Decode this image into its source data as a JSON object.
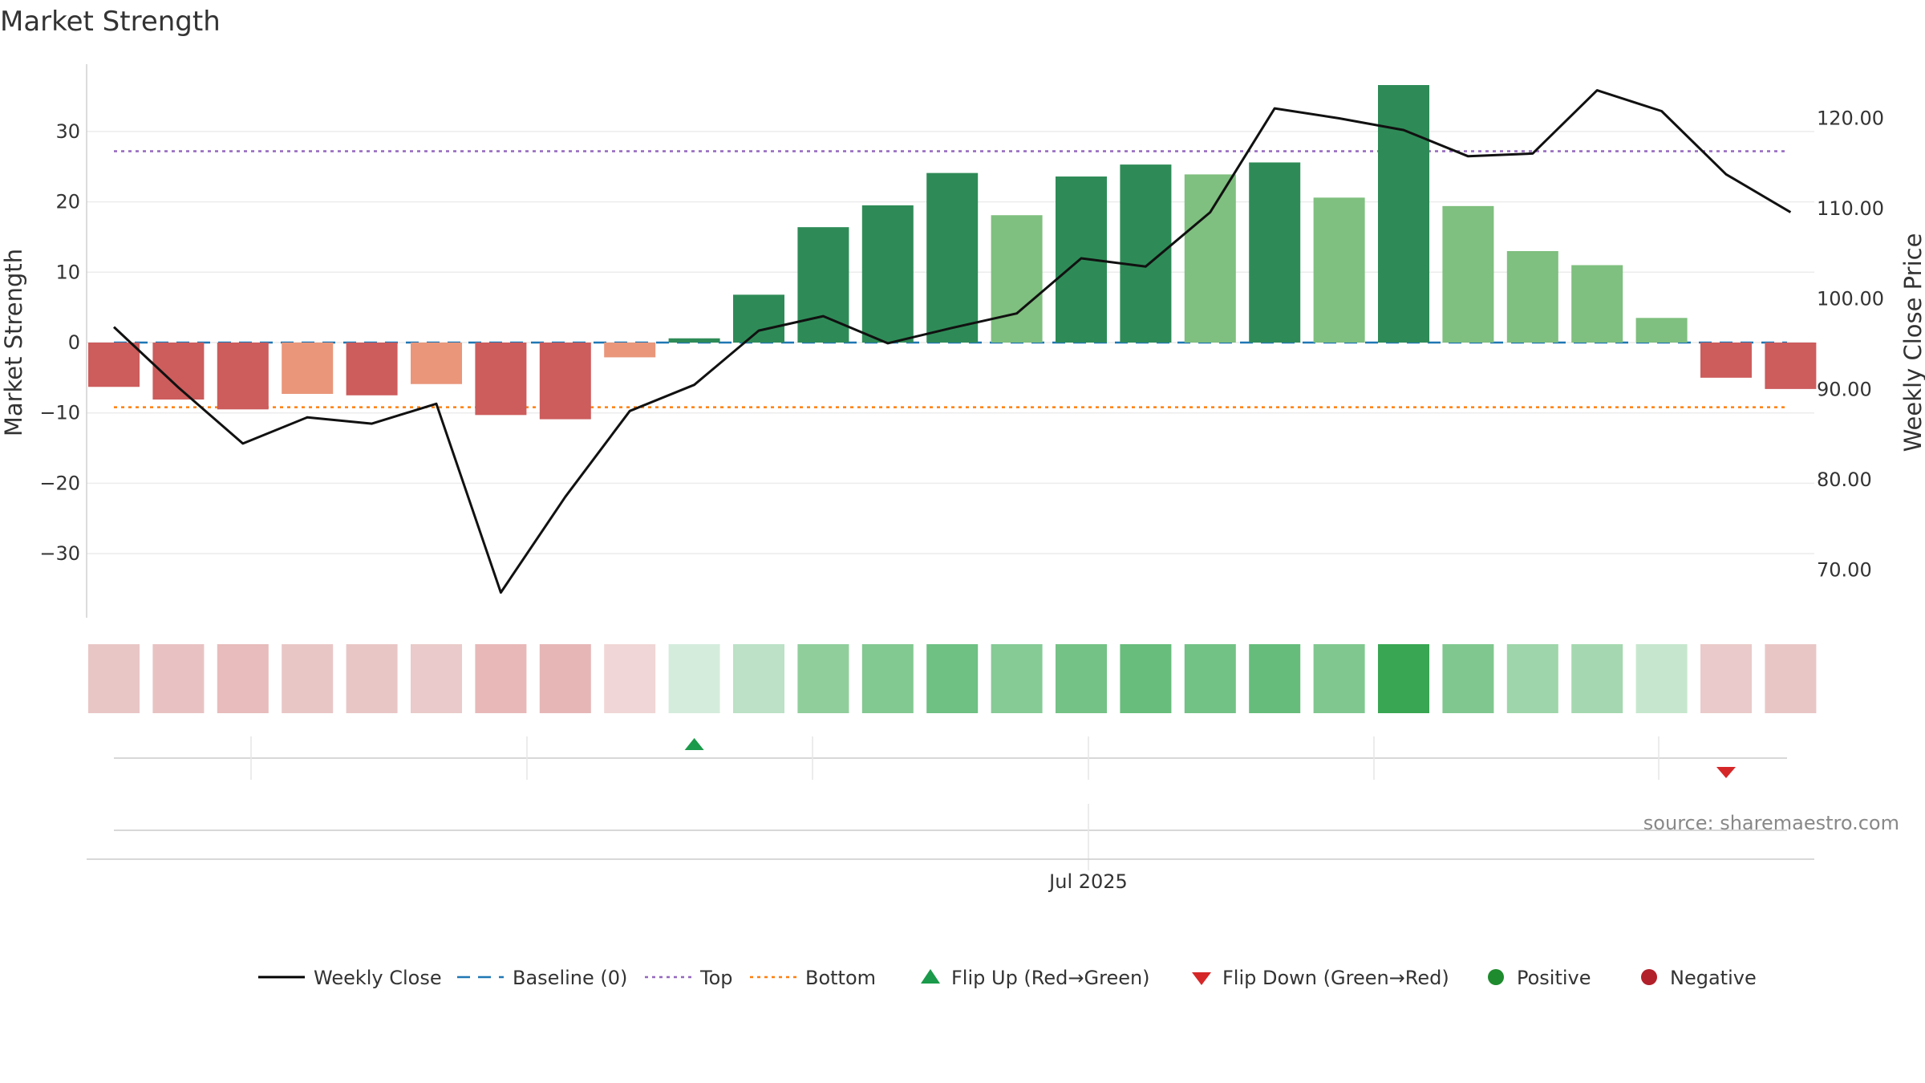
{
  "chart_data": {
    "type": "bar",
    "title": "Market Strength",
    "ylabel_left": "Market Strength",
    "ylabel_right": "Weekly Close Price",
    "y_left_ticks": [
      30,
      20,
      10,
      0,
      -10,
      -20,
      -30
    ],
    "y_left_tick_labels": [
      "30",
      "20",
      "10",
      "0",
      "−10",
      "−20",
      "−30"
    ],
    "y_right_ticks": [
      120,
      110,
      100,
      90,
      80,
      70
    ],
    "y_right_tick_labels": [
      "120.00",
      "110.00",
      "100.00",
      "90.00",
      "80.00",
      "70.00"
    ],
    "x_tick_label": "Jul 2025",
    "grid": true,
    "series": [
      {
        "name": "Market Strength",
        "values": [
          -6.3,
          -8.1,
          -9.5,
          -7.3,
          -7.5,
          -5.9,
          -10.3,
          -10.9,
          -2.1,
          0.6,
          6.8,
          16.4,
          19.5,
          24.1,
          18.1,
          23.6,
          25.3,
          23.9,
          25.6,
          20.6,
          36.6,
          19.4,
          13.0,
          11.0,
          3.5,
          -5.0,
          -6.6
        ],
        "colors": [
          "#cd5c5c",
          "#cd5c5c",
          "#cd5c5c",
          "#e9967a",
          "#cd5c5c",
          "#e9967a",
          "#cd5c5c",
          "#cd5c5c",
          "#e9967a",
          "#2e8b57",
          "#2e8b57",
          "#2e8b57",
          "#2e8b57",
          "#2e8b57",
          "#7fbf7f",
          "#2e8b57",
          "#2e8b57",
          "#7fbf7f",
          "#2e8b57",
          "#7fbf7f",
          "#2e8b57",
          "#7fbf7f",
          "#7fbf7f",
          "#7fbf7f",
          "#7fbf7f",
          "#cd5c5c",
          "#cd5c5c"
        ]
      },
      {
        "name": "Weekly Close",
        "values": [
          96.9,
          90.2,
          84.0,
          86.9,
          86.2,
          88.4,
          67.5,
          78.1,
          87.6,
          90.5,
          96.5,
          98.1,
          95.1,
          96.8,
          98.4,
          104.5,
          103.6,
          109.6,
          121.1,
          120.0,
          118.7,
          115.8,
          116.1,
          123.1,
          120.8,
          113.8,
          109.6
        ]
      }
    ],
    "reference_lines": {
      "baseline": 0,
      "top": 27.2,
      "bottom": -9.2
    },
    "heat_strip_colors": [
      "#e9c6c6",
      "#e8c2c2",
      "#e8bcbc",
      "#e9c6c6",
      "#e9c6c6",
      "#eacaca",
      "#e8b8b8",
      "#e6b6b6",
      "#f0d6d6",
      "#d4ecdc",
      "#bce1c6",
      "#90ce9c",
      "#82c891",
      "#6ec083",
      "#86ca96",
      "#74c286",
      "#68bd7c",
      "#72c185",
      "#66bd7b",
      "#80c78f",
      "#39a653",
      "#80c78f",
      "#9ed5aa",
      "#a5d8b0",
      "#c6e7cd",
      "#eacaca",
      "#e9c6c6"
    ],
    "flip_up_index": 9,
    "flip_down_index": 25,
    "x_band_labels": [
      "",
      "",
      "",
      "",
      "",
      ""
    ],
    "legend": {
      "placement": "bottom",
      "items": [
        {
          "label": "Weekly Close",
          "icon": "solid-line",
          "color": "#000000"
        },
        {
          "label": "Baseline (0)",
          "icon": "dashed-line",
          "color": "#1f77b4"
        },
        {
          "label": "Top",
          "icon": "dotted-line",
          "color": "#9467bd"
        },
        {
          "label": "Bottom",
          "icon": "dotted-line",
          "color": "#ff7f0e"
        },
        {
          "label": "Flip Up (Red→Green)",
          "icon": "triangle-up",
          "color": "#1a9a4a"
        },
        {
          "label": "Flip Down (Green→Red)",
          "icon": "triangle-down",
          "color": "#d62728"
        },
        {
          "label": "Positive",
          "icon": "circle",
          "color": "#1e8b2e"
        },
        {
          "label": "Negative",
          "icon": "circle",
          "color": "#b2202a"
        }
      ]
    },
    "source": "source: sharemaestro.com"
  }
}
